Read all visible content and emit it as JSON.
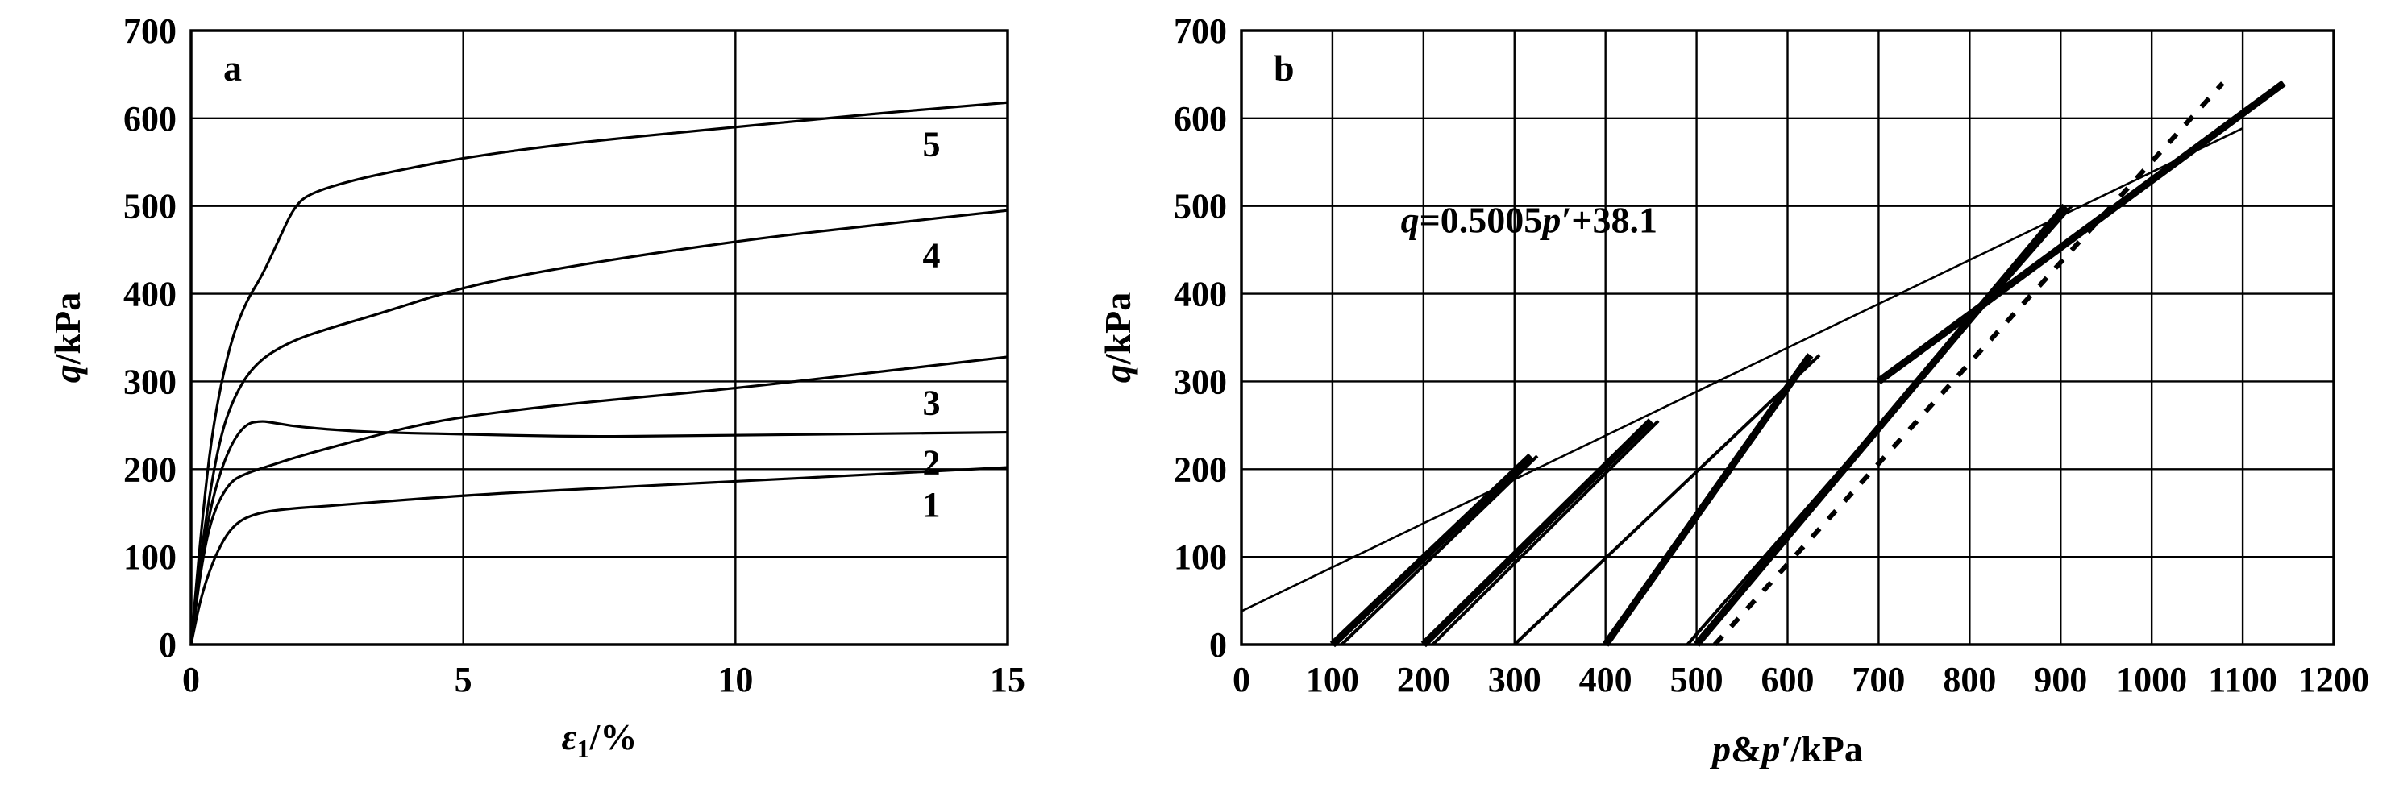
{
  "chart_data": [
    {
      "type": "line",
      "panel_label": "a",
      "xlabel_main": "ε",
      "xlabel_sub": "1",
      "xlabel_unit": "/%",
      "ylabel_main": "q",
      "ylabel_unit": "/kPa",
      "xlim": [
        0,
        15
      ],
      "ylim": [
        0,
        700
      ],
      "xticks": [
        0,
        5,
        10,
        15
      ],
      "yticks": [
        0,
        100,
        200,
        300,
        400,
        500,
        600,
        700
      ],
      "grid": true,
      "series": [
        {
          "name": "1",
          "x": [
            0,
            0.2,
            0.5,
            0.8,
            1.2,
            1.8,
            2.5,
            3.5,
            5,
            7,
            10,
            12.5,
            15
          ],
          "y": [
            0,
            60,
            110,
            138,
            150,
            155,
            158,
            163,
            170,
            177,
            186,
            194,
            202
          ]
        },
        {
          "name": "2",
          "x": [
            0,
            0.2,
            0.4,
            0.7,
            1.0,
            1.3,
            1.5,
            2,
            3,
            4,
            5,
            7,
            9,
            12,
            15
          ],
          "y": [
            0,
            100,
            170,
            225,
            252,
            255,
            253,
            248,
            243,
            241,
            240,
            237,
            238,
            240,
            242
          ]
        },
        {
          "name": "3",
          "x": [
            0,
            0.2,
            0.4,
            0.7,
            1,
            1.5,
            2,
            3,
            4,
            5,
            7,
            10,
            12.5,
            15
          ],
          "y": [
            0,
            95,
            150,
            185,
            195,
            205,
            215,
            232,
            248,
            260,
            275,
            292,
            310,
            328
          ]
        },
        {
          "name": "4",
          "x": [
            0,
            0.2,
            0.5,
            0.8,
            1.2,
            1.8,
            2.5,
            3.5,
            5,
            7,
            10,
            12.5,
            15
          ],
          "y": [
            0,
            115,
            230,
            285,
            322,
            345,
            360,
            378,
            408,
            432,
            460,
            478,
            495
          ]
        },
        {
          "name": "5",
          "x": [
            0,
            0.2,
            0.4,
            0.7,
            1,
            1.3,
            1.6,
            1.9,
            2.2,
            3,
            4,
            5,
            7,
            10,
            12.5,
            15
          ],
          "y": [
            0,
            140,
            250,
            340,
            390,
            420,
            460,
            500,
            515,
            530,
            543,
            555,
            572,
            590,
            605,
            618
          ]
        }
      ]
    },
    {
      "type": "line",
      "panel_label": "b",
      "xlabel_main": "p",
      "xlabel_mid": "&",
      "xlabel_main2": "p′",
      "xlabel_unit": "/kPa",
      "ylabel_main": "q",
      "ylabel_unit": "/kPa",
      "xlim": [
        0,
        1200
      ],
      "ylim": [
        0,
        700
      ],
      "xticks": [
        0,
        100,
        200,
        300,
        400,
        500,
        600,
        700,
        800,
        900,
        1000,
        1100,
        1200
      ],
      "yticks": [
        0,
        100,
        200,
        300,
        400,
        500,
        600,
        700
      ],
      "grid": true,
      "annotation": {
        "lhs": "q",
        "eq": "=0.5005",
        "var": "p′",
        "rhs": "+38.1"
      },
      "fit_line": {
        "slope": 0.5005,
        "intercept": 38.1
      },
      "stress_paths": [
        {
          "kind": "effective",
          "start": [
            100,
            0
          ],
          "end": [
            318,
            215
          ]
        },
        {
          "kind": "total",
          "start": [
            110,
            0
          ],
          "end": [
            325,
            215
          ]
        },
        {
          "kind": "effective",
          "start": [
            200,
            0
          ],
          "end": [
            450,
            255
          ]
        },
        {
          "kind": "total",
          "start": [
            210,
            0
          ],
          "end": [
            458,
            255
          ]
        },
        {
          "kind": "effective",
          "start": [
            400,
            0
          ],
          "end": [
            625,
            330
          ]
        },
        {
          "kind": "total",
          "start": [
            300,
            0
          ],
          "end": [
            635,
            330
          ]
        },
        {
          "kind": "effective",
          "start": [
            500,
            0
          ],
          "end": [
            905,
            500
          ]
        },
        {
          "kind": "total",
          "start": [
            490,
            0
          ],
          "end": [
            912,
            500
          ]
        },
        {
          "kind": "effective",
          "start": [
            700,
            300
          ],
          "end": [
            1145,
            640
          ]
        },
        {
          "kind": "total",
          "start": [
            520,
            0
          ],
          "end": [
            1078,
            640
          ]
        }
      ]
    }
  ]
}
